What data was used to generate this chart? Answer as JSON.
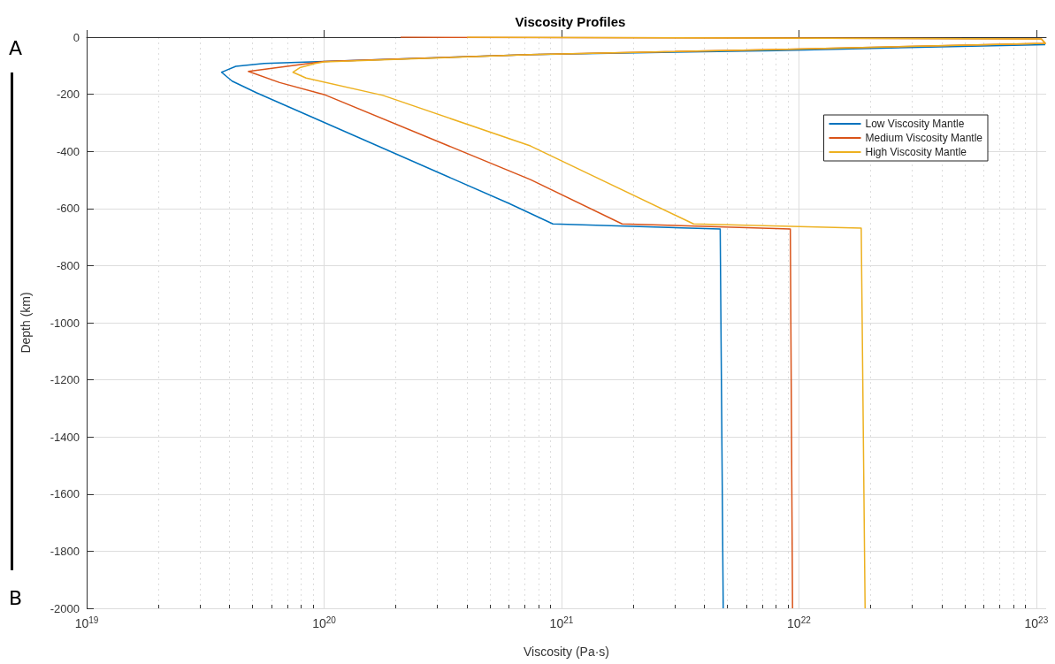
{
  "chart_data": {
    "type": "line",
    "title": "Viscosity Profiles",
    "xlabel": "Viscosity (Pa·s)",
    "ylabel": "Depth (km)",
    "log": "x",
    "grid": true,
    "legend": "top right",
    "marker": "none",
    "line_style": "solid",
    "xlim": [
      1e+19,
      1.1e+23
    ],
    "xticks": [
      {
        "value": 1e+19,
        "label": "10$^{19}$"
      },
      {
        "value": 1e+20,
        "label": "10$^{20}$"
      },
      {
        "value": 1e+21,
        "label": "10$^{21}$"
      },
      {
        "value": 1e+22,
        "label": "10$^{22}$"
      },
      {
        "value": 1e+23,
        "label": "10$^{23}$"
      }
    ],
    "ylim": [
      -2000,
      0
    ],
    "yticks": [
      -2000,
      -1800,
      -1600,
      -1400,
      -1200,
      -1000,
      -800,
      -600,
      -400,
      -200,
      0
    ],
    "annotations": [
      "A",
      "B"
    ],
    "series": [
      {
        "name": "Low Viscosity Mantle",
        "color": "#0072bd",
        "x": [
          1.09e+23,
          8.1e+21,
          7.4e+20,
          1e+20,
          5.6e+19,
          4.25e+19,
          3.7e+19,
          4.1e+19,
          5.2e+19,
          6e+20,
          9.2e+20,
          4.66e+21,
          4.8e+21
        ],
        "values": [
          -26,
          -47,
          -61,
          -85,
          -92,
          -102,
          -123,
          -154,
          -195,
          -582,
          -654,
          -672,
          -2000
        ]
      },
      {
        "name": "Medium Viscosity Mantle",
        "color": "#d95319",
        "x": [
          2.1e+20,
          1.05e+23,
          1.09e+23,
          8.1e+21,
          7.4e+20,
          1e+20,
          4.8e+19,
          6.5e+19,
          1e+20,
          7.4e+20,
          1.8e+21,
          9.2e+21,
          9.4e+21
        ],
        "values": [
          0,
          -6,
          -22,
          -43,
          -61,
          -85,
          -120,
          -159,
          -201,
          -499,
          -654,
          -672,
          -2000
        ]
      },
      {
        "name": "High Viscosity Mantle",
        "color": "#edb120",
        "x": [
          4e+20,
          1.05e+23,
          1.09e+23,
          8.1e+21,
          7.4e+20,
          1e+20,
          9.2e+19,
          7.9e+19,
          7.4e+19,
          8.4e+19,
          1.77e+20,
          7.4e+20,
          1.38e+21,
          3.6e+21,
          1.83e+22,
          1.9e+22
        ],
        "values": [
          0,
          -6,
          -22,
          -43,
          -61,
          -87,
          -92,
          -107,
          -123,
          -143,
          -204,
          -381,
          -489,
          -654,
          -669,
          -2000
        ]
      }
    ]
  }
}
